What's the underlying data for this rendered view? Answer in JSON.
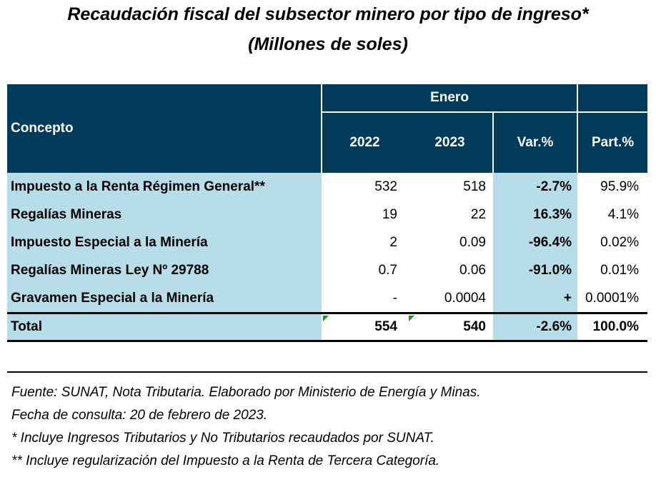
{
  "title": {
    "line1": "Recaudación fiscal del subsector minero por tipo de ingreso*",
    "line2": "(Millones de soles)"
  },
  "table": {
    "header": {
      "concept": "Concepto",
      "period": "Enero",
      "year1": "2022",
      "year2": "2023",
      "var": "Var.%",
      "part": "Part.%"
    },
    "rows": [
      {
        "concept": "Impuesto a la Renta Régimen General**",
        "y2022": "532",
        "y2023": "518",
        "var": "-2.7%",
        "part": "95.9%"
      },
      {
        "concept": "Regalías Mineras",
        "y2022": "19",
        "y2023": "22",
        "var": "16.3%",
        "part": "4.1%"
      },
      {
        "concept": "Impuesto Especial a la Minería",
        "y2022": "2",
        "y2023": "0.09",
        "var": "-96.4%",
        "part": "0.02%"
      },
      {
        "concept": "Regalías Mineras Ley Nº 29788",
        "y2022": "0.7",
        "y2023": "0.06",
        "var": "-91.0%",
        "part": "0.01%"
      },
      {
        "concept": "Gravamen Especial a la Minería",
        "y2022": "-",
        "y2023": "0.0004",
        "var": "+",
        "part": "0.0001%"
      }
    ],
    "total": {
      "concept": "Total",
      "y2022": "554",
      "y2023": "540",
      "var": "-2.6%",
      "part": "100.0%"
    }
  },
  "notes": [
    "Fuente: SUNAT, Nota Tributaria. Elaborado por Ministerio de Energía y Minas.",
    "Fecha de consulta: 20 de febrero de 2023.",
    "* Incluye Ingresos Tributarios y No Tributarios recaudados por SUNAT.",
    "** Incluye regularización del Impuesto a la Renta de Tercera Categoría."
  ],
  "colors": {
    "header_bg": "#003b5c",
    "highlight_bg": "#b7dde8",
    "marker": "#2e8b2e"
  }
}
